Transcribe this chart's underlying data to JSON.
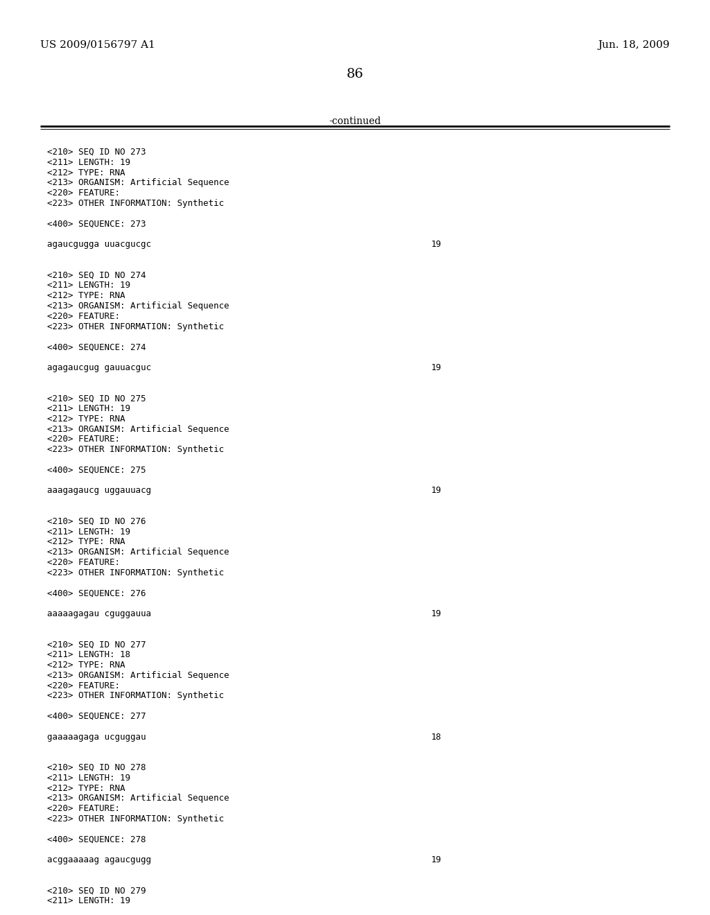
{
  "header_left": "US 2009/0156797 A1",
  "header_right": "Jun. 18, 2009",
  "page_number": "86",
  "continued_text": "-continued",
  "background_color": "#ffffff",
  "text_color": "#000000",
  "entries": [
    {
      "lines": [
        "<210> SEQ ID NO 273",
        "<211> LENGTH: 19",
        "<212> TYPE: RNA",
        "<213> ORGANISM: Artificial Sequence",
        "<220> FEATURE:",
        "<223> OTHER INFORMATION: Synthetic"
      ],
      "seq_label": "<400> SEQUENCE: 273",
      "sequence": "agaucgugga uuacgucgc",
      "seq_num": "19"
    },
    {
      "lines": [
        "<210> SEQ ID NO 274",
        "<211> LENGTH: 19",
        "<212> TYPE: RNA",
        "<213> ORGANISM: Artificial Sequence",
        "<220> FEATURE:",
        "<223> OTHER INFORMATION: Synthetic"
      ],
      "seq_label": "<400> SEQUENCE: 274",
      "sequence": "agagaucgug gauuacguc",
      "seq_num": "19"
    },
    {
      "lines": [
        "<210> SEQ ID NO 275",
        "<211> LENGTH: 19",
        "<212> TYPE: RNA",
        "<213> ORGANISM: Artificial Sequence",
        "<220> FEATURE:",
        "<223> OTHER INFORMATION: Synthetic"
      ],
      "seq_label": "<400> SEQUENCE: 275",
      "sequence": "aaagagaucg uggauuacg",
      "seq_num": "19"
    },
    {
      "lines": [
        "<210> SEQ ID NO 276",
        "<211> LENGTH: 19",
        "<212> TYPE: RNA",
        "<213> ORGANISM: Artificial Sequence",
        "<220> FEATURE:",
        "<223> OTHER INFORMATION: Synthetic"
      ],
      "seq_label": "<400> SEQUENCE: 276",
      "sequence": "aaaaagagau cguggauua",
      "seq_num": "19"
    },
    {
      "lines": [
        "<210> SEQ ID NO 277",
        "<211> LENGTH: 18",
        "<212> TYPE: RNA",
        "<213> ORGANISM: Artificial Sequence",
        "<220> FEATURE:",
        "<223> OTHER INFORMATION: Synthetic"
      ],
      "seq_label": "<400> SEQUENCE: 277",
      "sequence": "gaaaaagaga ucguggau",
      "seq_num": "18"
    },
    {
      "lines": [
        "<210> SEQ ID NO 278",
        "<211> LENGTH: 19",
        "<212> TYPE: RNA",
        "<213> ORGANISM: Artificial Sequence",
        "<220> FEATURE:",
        "<223> OTHER INFORMATION: Synthetic"
      ],
      "seq_label": "<400> SEQUENCE: 278",
      "sequence": "acggaaaaag agaucgugg",
      "seq_num": "19"
    },
    {
      "lines": [
        "<210> SEQ ID NO 279",
        "<211> LENGTH: 19"
      ],
      "seq_label": null,
      "sequence": null,
      "seq_num": null
    }
  ]
}
